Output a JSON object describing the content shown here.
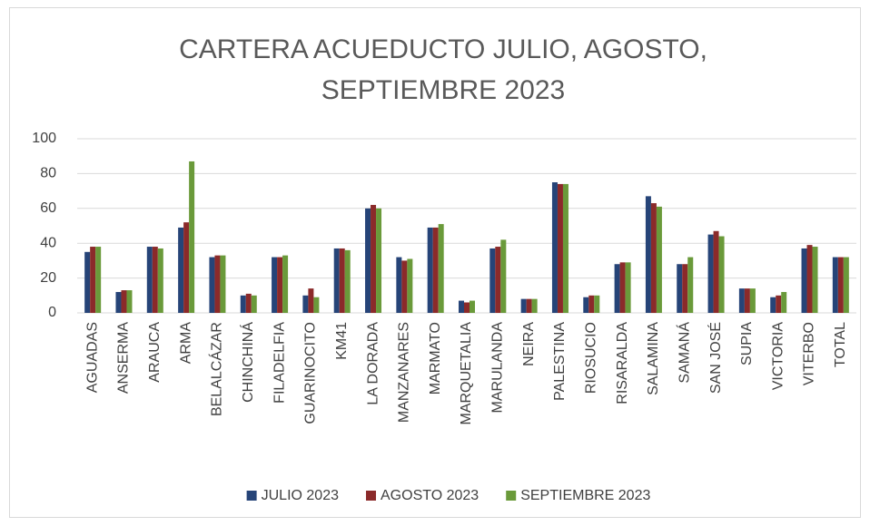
{
  "chart_data": {
    "type": "bar",
    "title": "CARTERA ACUEDUCTO JULIO, AGOSTO, SEPTIEMBRE 2023",
    "categories": [
      "AGUADAS",
      "ANSERMA",
      "ARAUCA",
      "ARMA",
      "BELALCÁZAR",
      "CHINCHINÁ",
      "FILADELFIA",
      "GUARINOCITO",
      "KM41",
      "LA DORADA",
      "MANZANARES",
      "MARMATO",
      "MARQUETALIA",
      "MARULANDA",
      "NEIRA",
      "PALESTINA",
      "RIOSUCIO",
      "RISARALDA",
      "SALAMINA",
      "SAMANÁ",
      "SAN JOSÉ",
      "SUPIA",
      "VICTORIA",
      "VITERBO",
      "TOTAL"
    ],
    "series": [
      {
        "name": "JULIO 2023",
        "color": "#264478",
        "values": [
          35,
          12,
          38,
          49,
          32,
          10,
          32,
          10,
          37,
          60,
          32,
          49,
          7,
          37,
          8,
          75,
          9,
          28,
          67,
          28,
          45,
          14,
          9,
          37,
          32
        ]
      },
      {
        "name": "AGOSTO 2023",
        "color": "#8b2a2a",
        "values": [
          38,
          13,
          38,
          52,
          33,
          11,
          32,
          14,
          37,
          62,
          30,
          49,
          6,
          38,
          8,
          74,
          10,
          29,
          63,
          28,
          47,
          14,
          10,
          39,
          32
        ]
      },
      {
        "name": "SEPTIEMBRE 2023",
        "color": "#6a9a3a",
        "values": [
          38,
          13,
          37,
          87,
          33,
          10,
          33,
          9,
          36,
          60,
          31,
          51,
          7,
          42,
          8,
          74,
          10,
          29,
          61,
          32,
          44,
          14,
          12,
          38,
          32
        ]
      }
    ],
    "ylim": [
      0,
      100
    ],
    "yticks": [
      0,
      20,
      40,
      60,
      80,
      100
    ],
    "grid": true,
    "legend": "bottom"
  }
}
